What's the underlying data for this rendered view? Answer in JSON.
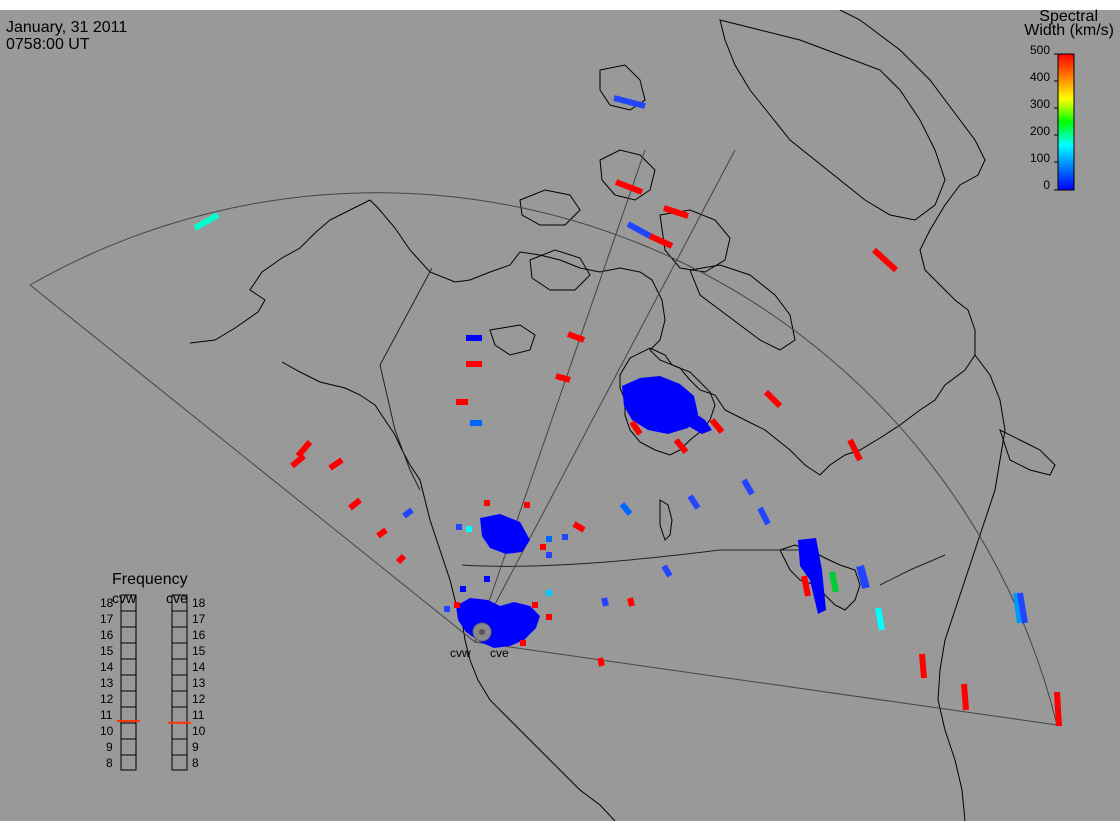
{
  "header": {
    "date": "January, 31 2011",
    "time": "0758:00 UT"
  },
  "colorbar": {
    "title_line1": "Spectral",
    "title_line2": "Width (km/s)",
    "ticks": [
      "500",
      "400",
      "300",
      "200",
      "100",
      "0"
    ],
    "gradient": [
      "#0000ff",
      "#0080ff",
      "#00ffff",
      "#00ff00",
      "#ffff00",
      "#ff8000",
      "#ff0000"
    ]
  },
  "frequency_panel": {
    "title": "Frequency",
    "radars": [
      "cvw",
      "cve"
    ],
    "levels": [
      "18",
      "17",
      "16",
      "15",
      "14",
      "13",
      "12",
      "11",
      "10",
      "9",
      "8"
    ],
    "values_mhz": {
      "cvw": 10.8,
      "cve": 10.7
    },
    "marker_color": "#ff3300"
  },
  "sites": {
    "west": "cvw",
    "east": "cve"
  },
  "colors": {
    "background": "#999999",
    "coastline": "#000000",
    "boundary": "#444444",
    "low_width": "#0000ff",
    "high_width": "#ff0000",
    "mid_width": "#00ffff"
  }
}
